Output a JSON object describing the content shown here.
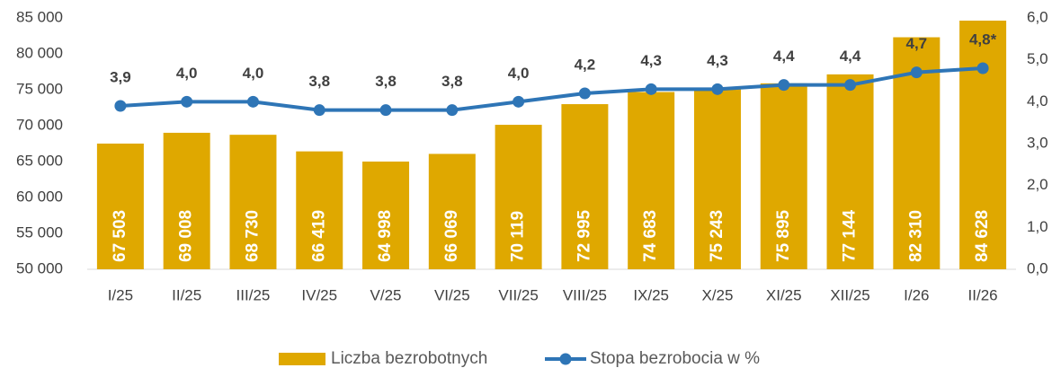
{
  "chart_data": {
    "type": "bar",
    "categories": [
      "I/25",
      "II/25",
      "III/25",
      "IV/25",
      "V/25",
      "VI/25",
      "VII/25",
      "VIII/25",
      "IX/25",
      "X/25",
      "XI/25",
      "XII/25",
      "I/26",
      "II/26"
    ],
    "series": [
      {
        "name": "Liczba bezrobotnych",
        "type": "bar",
        "color": "#dfa800",
        "values": [
          67503,
          69008,
          68730,
          66419,
          64998,
          66069,
          70119,
          72995,
          74683,
          75243,
          75895,
          77144,
          82310,
          84628
        ],
        "value_labels": [
          "67 503",
          "69 008",
          "68 730",
          "66 419",
          "64 998",
          "66 069",
          "70 119",
          "72 995",
          "74 683",
          "75 243",
          "75 895",
          "77 144",
          "82 310",
          "84 628"
        ]
      },
      {
        "name": "Stopa bezrobocia w %",
        "type": "line",
        "axis": "y2",
        "color": "#2e75b6",
        "values": [
          3.9,
          4.0,
          4.0,
          3.8,
          3.8,
          3.8,
          4.0,
          4.2,
          4.3,
          4.3,
          4.4,
          4.4,
          4.7,
          4.8
        ],
        "value_labels": [
          "3,9",
          "4,0",
          "4,0",
          "3,8",
          "3,8",
          "3,8",
          "4,0",
          "4,2",
          "4,3",
          "4,3",
          "4,4",
          "4,4",
          "4,7",
          "4,8*"
        ]
      }
    ],
    "ylim": [
      50000,
      85000
    ],
    "yticks": [
      {
        "value": 50000,
        "label": "50 000"
      },
      {
        "value": 55000,
        "label": "55 000"
      },
      {
        "value": 60000,
        "label": "60 000"
      },
      {
        "value": 65000,
        "label": "65 000"
      },
      {
        "value": 70000,
        "label": "70 000"
      },
      {
        "value": 75000,
        "label": "75 000"
      },
      {
        "value": 80000,
        "label": "80 000"
      },
      {
        "value": 85000,
        "label": "85 000"
      }
    ],
    "y2lim": [
      0,
      6
    ],
    "y2ticks": [
      {
        "value": 0,
        "label": "0,0"
      },
      {
        "value": 1,
        "label": "1,0"
      },
      {
        "value": 2,
        "label": "2,0"
      },
      {
        "value": 3,
        "label": "3,0"
      },
      {
        "value": 4,
        "label": "4,0"
      },
      {
        "value": 5,
        "label": "5,0"
      },
      {
        "value": 6,
        "label": "6,0"
      }
    ],
    "grid": false,
    "legend": "bottom"
  }
}
